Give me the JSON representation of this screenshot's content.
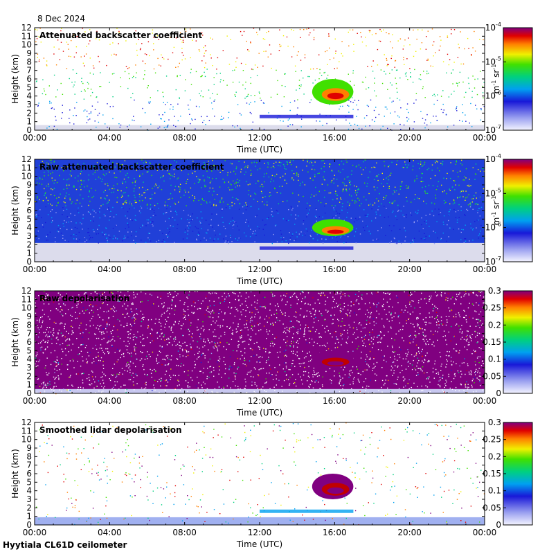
{
  "header": {
    "date": "8 Dec 2024"
  },
  "footer": {
    "instrument": "Hyytiala CL61D ceilometer"
  },
  "chart_data": [
    {
      "type": "heatmap",
      "title": "Attenuated backscatter coefficient",
      "xlabel": "Time (UTC)",
      "ylabel": "Height (km)",
      "x_ticks": [
        "00:00",
        "04:00",
        "08:00",
        "12:00",
        "16:00",
        "20:00",
        "00:00"
      ],
      "y_ticks": [
        "0",
        "1",
        "2",
        "3",
        "4",
        "5",
        "6",
        "7",
        "8",
        "9",
        "10",
        "11",
        "12"
      ],
      "ylim": [
        0,
        12
      ],
      "colorbar": {
        "scale": "log",
        "ticks": [
          "10",
          "10",
          "10",
          "10"
        ],
        "tick_exponents": [
          "-7",
          "-6",
          "-5",
          "-4"
        ],
        "unit": "m",
        "unit_exp1": "-1",
        "unit_mid": " sr",
        "unit_exp2": "-1",
        "range": [
          1e-07,
          0.0001
        ]
      },
      "features": {
        "cloud_time_h": [
          14.8,
          17.0
        ],
        "cloud_height_km": [
          3.0,
          6.0
        ],
        "layer_time_h": [
          12.0,
          17.0
        ],
        "layer_height_km": [
          1.4,
          1.8
        ]
      }
    },
    {
      "type": "heatmap",
      "title": "Raw attenuated backscatter coefficient",
      "xlabel": "Time (UTC)",
      "ylabel": "Height (km)",
      "x_ticks": [
        "00:00",
        "04:00",
        "08:00",
        "12:00",
        "16:00",
        "20:00",
        "00:00"
      ],
      "y_ticks": [
        "0",
        "1",
        "2",
        "3",
        "4",
        "5",
        "6",
        "7",
        "8",
        "9",
        "10",
        "11",
        "12"
      ],
      "ylim": [
        0,
        12
      ],
      "colorbar": {
        "scale": "log",
        "ticks": [
          "10",
          "10",
          "10",
          "10"
        ],
        "tick_exponents": [
          "-7",
          "-6",
          "-5",
          "-4"
        ],
        "unit": "m",
        "unit_exp1": "-1",
        "unit_mid": " sr",
        "unit_exp2": "-1",
        "range": [
          1e-07,
          0.0001
        ]
      },
      "features": {
        "cloud_time_h": [
          14.8,
          17.0
        ],
        "cloud_height_km": [
          3.0,
          5.0
        ],
        "layer_time_h": [
          12.0,
          17.0
        ],
        "layer_height_km": [
          1.4,
          1.8
        ]
      }
    },
    {
      "type": "heatmap",
      "title": "Raw depolarisation",
      "xlabel": "Time (UTC)",
      "ylabel": "Height (km)",
      "x_ticks": [
        "00:00",
        "04:00",
        "08:00",
        "12:00",
        "16:00",
        "20:00",
        "00:00"
      ],
      "y_ticks": [
        "0",
        "1",
        "2",
        "3",
        "4",
        "5",
        "6",
        "7",
        "8",
        "9",
        "10",
        "11",
        "12"
      ],
      "ylim": [
        0,
        12
      ],
      "colorbar": {
        "scale": "linear",
        "ticks": [
          "0",
          "0.05",
          "0.1",
          "0.15",
          "0.2",
          "0.25",
          "0.3"
        ],
        "range": [
          0,
          0.3
        ]
      },
      "features": {
        "cloud_time_h": [
          14.8,
          17.0
        ],
        "cloud_height_km": [
          3.0,
          5.0
        ]
      }
    },
    {
      "type": "heatmap",
      "title": "Smoothed lidar depolarisation",
      "xlabel": "Time (UTC)",
      "ylabel": "Height (km)",
      "x_ticks": [
        "00:00",
        "04:00",
        "08:00",
        "12:00",
        "16:00",
        "20:00",
        "00:00"
      ],
      "y_ticks": [
        "0",
        "1",
        "2",
        "3",
        "4",
        "5",
        "6",
        "7",
        "8",
        "9",
        "10",
        "11",
        "12"
      ],
      "ylim": [
        0,
        12
      ],
      "colorbar": {
        "scale": "linear",
        "ticks": [
          "0",
          "0.05",
          "0.1",
          "0.15",
          "0.2",
          "0.25",
          "0.3"
        ],
        "range": [
          0,
          0.3
        ]
      },
      "features": {
        "cloud_time_h": [
          14.8,
          17.0
        ],
        "cloud_height_km": [
          3.0,
          6.0
        ],
        "layer_time_h": [
          12.0,
          17.0
        ],
        "layer_height_km": [
          1.4,
          1.8
        ]
      }
    }
  ]
}
